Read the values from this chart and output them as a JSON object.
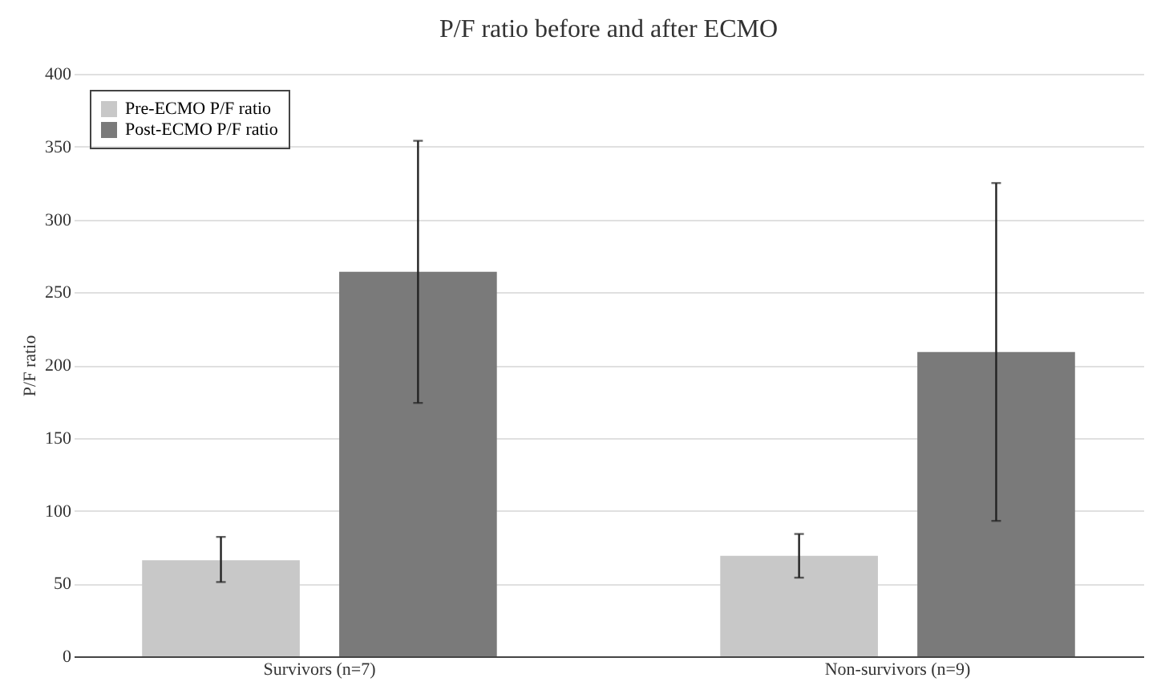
{
  "chart_data": {
    "type": "bar",
    "title": "P/F ratio before and after ECMO",
    "ylabel": "P/F ratio",
    "categories": [
      "Survivors (n=7)",
      "Non-survivors (n=9)"
    ],
    "series": [
      {
        "name": "Pre-ECMO P/F ratio",
        "color": "#c8c8c8",
        "values": [
          66,
          69
        ],
        "errors": [
          [
            51,
            82
          ],
          [
            54,
            84
          ]
        ]
      },
      {
        "name": "Post-ECMO P/F ratio",
        "color": "#7a7a7a",
        "values": [
          264,
          209
        ],
        "errors": [
          [
            174,
            354
          ],
          [
            93,
            325
          ]
        ]
      }
    ],
    "ylim": [
      0,
      400
    ],
    "yticks": [
      0,
      50,
      100,
      150,
      200,
      250,
      300,
      350,
      400
    ],
    "grid": true,
    "legend": "top left"
  }
}
